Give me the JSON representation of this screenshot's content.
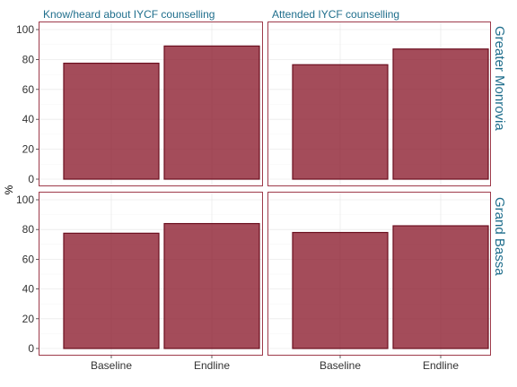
{
  "chart_data": {
    "type": "bar",
    "ylabel": "%",
    "xlabel": "",
    "ylim": [
      0,
      100
    ],
    "yticks": [
      0,
      20,
      40,
      60,
      80,
      100
    ],
    "categories": [
      "Baseline",
      "Endline"
    ],
    "facet_columns": [
      "Know/heard about IYCF counselling",
      "Attended IYCF counselling"
    ],
    "facet_rows": [
      "Greater Monrovia",
      "Grand Bassa"
    ],
    "panels": [
      {
        "row": "Greater Monrovia",
        "column": "Know/heard about IYCF counselling",
        "values": [
          77.5,
          89
        ]
      },
      {
        "row": "Greater Monrovia",
        "column": "Attended IYCF counselling",
        "values": [
          76.5,
          87
        ]
      },
      {
        "row": "Grand Bassa",
        "column": "Know/heard about IYCF counselling",
        "values": [
          77.5,
          84
        ]
      },
      {
        "row": "Grand Bassa",
        "column": "Attended IYCF counselling",
        "values": [
          78,
          82.5
        ]
      }
    ],
    "bar_color": "#8b1a2b",
    "grid": true
  }
}
